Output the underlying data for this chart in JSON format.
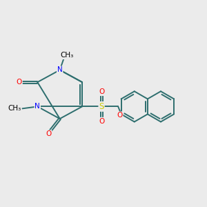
{
  "background_color": "#ebebeb",
  "fig_size": [
    3.0,
    3.0
  ],
  "dpi": 100,
  "bond_color": "#2d6e6e",
  "bond_lw": 1.4,
  "N_color": "#0000ff",
  "O_color": "#ff0000",
  "S_color": "#cccc00",
  "C_color": "#000000",
  "font_size": 7.5,
  "methyl_font_size": 7.5,
  "xlim": [
    0,
    10
  ],
  "ylim": [
    0,
    10
  ]
}
